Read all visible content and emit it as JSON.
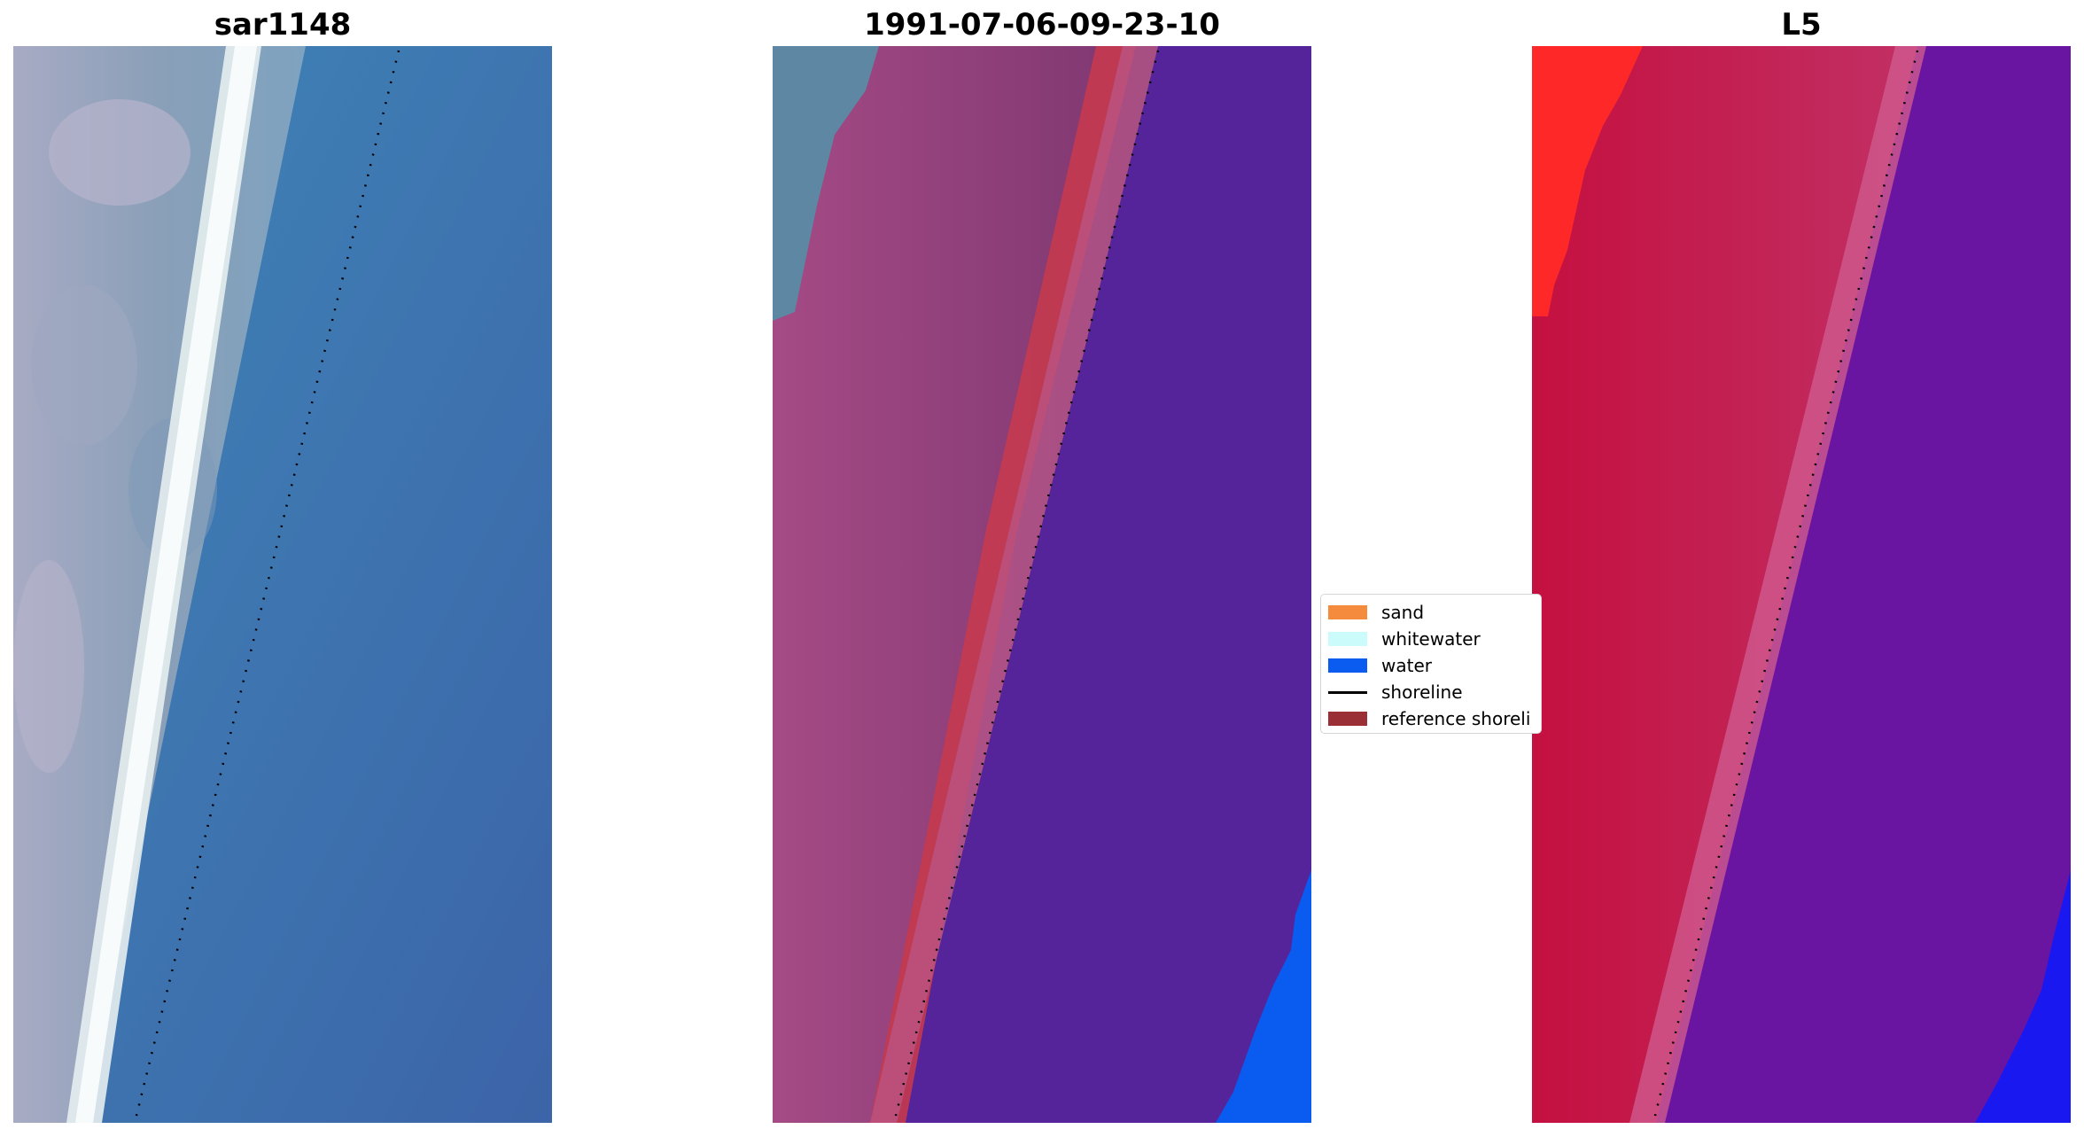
{
  "panels": [
    {
      "id": "rgb",
      "title": "sar1148"
    },
    {
      "id": "classified",
      "title": "1991-07-06-09-23-10"
    },
    {
      "id": "index",
      "title": "L5"
    }
  ],
  "legend": {
    "items": [
      {
        "label": "sand",
        "color": "#f58b3c",
        "kind": "patch"
      },
      {
        "label": "whitewater",
        "color": "#ccfbfb",
        "kind": "patch"
      },
      {
        "label": "water",
        "color": "#0a5cf0",
        "kind": "patch"
      },
      {
        "label": "shoreline",
        "color": "#000000",
        "kind": "line"
      },
      {
        "label": "reference shoreli",
        "color": "#9a2f35",
        "kind": "patch"
      }
    ]
  },
  "colors": {
    "water_rgb": "#4079b8",
    "surf_white": "#f0f4f6",
    "land_gray": "#8e9fb4",
    "classified_water": "#55249a",
    "classified_land": "#8a3f78",
    "reference_band": "#c43a4e",
    "bright_water": "#0a5cf0",
    "index_red": "#c41a44",
    "index_purple": "#6a14a2",
    "index_bright_red": "#ff2828",
    "index_blue": "#1a18f0"
  }
}
